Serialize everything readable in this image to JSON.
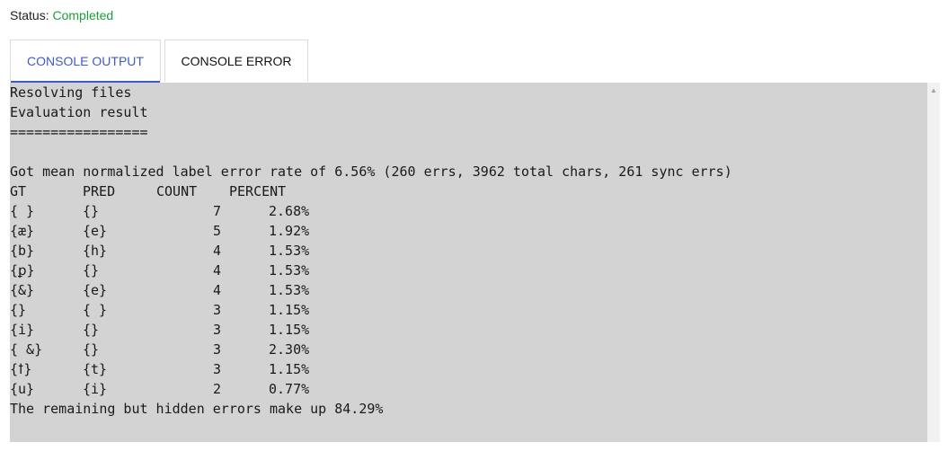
{
  "status": {
    "label": "Status:",
    "value": "Completed"
  },
  "tabs": [
    {
      "label": "CONSOLE OUTPUT"
    },
    {
      "label": "CONSOLE ERROR"
    }
  ],
  "console": {
    "intro": [
      "Resolving files",
      "Evaluation result",
      "================="
    ],
    "summary": "Got mean normalized label error rate of 6.56% (260 errs, 3962 total chars, 261 sync errs)",
    "headers": {
      "gt": "GT",
      "pred": "PRED",
      "count": "COUNT",
      "percent": "PERCENT"
    },
    "rows": [
      {
        "gt": "{ }",
        "pred": "{}",
        "count": "7",
        "percent": "2.68%"
      },
      {
        "gt": "{æ}",
        "pred": "{e}",
        "count": "5",
        "percent": "1.92%"
      },
      {
        "gt": "{b}",
        "pred": "{h}",
        "count": "4",
        "percent": "1.53%"
      },
      {
        "gt": "{ꝑ}",
        "pred": "{}",
        "count": "4",
        "percent": "1.53%"
      },
      {
        "gt": "{&}",
        "pred": "{e}",
        "count": "4",
        "percent": "1.53%"
      },
      {
        "gt": "{}",
        "pred": "{ }",
        "count": "3",
        "percent": "1.15%"
      },
      {
        "gt": "{i}",
        "pred": "{}",
        "count": "3",
        "percent": "1.15%"
      },
      {
        "gt": "{ &}",
        "pred": "{}",
        "count": "3",
        "percent": "2.30%"
      },
      {
        "gt": "{ꝉ}",
        "pred": "{t}",
        "count": "3",
        "percent": "1.15%"
      },
      {
        "gt": "{u}",
        "pred": "{i}",
        "count": "2",
        "percent": "0.77%"
      }
    ],
    "footer": "The remaining but hidden errors make up 84.29%"
  },
  "scrollbar": {
    "up_icon": "chevron-up-icon"
  }
}
